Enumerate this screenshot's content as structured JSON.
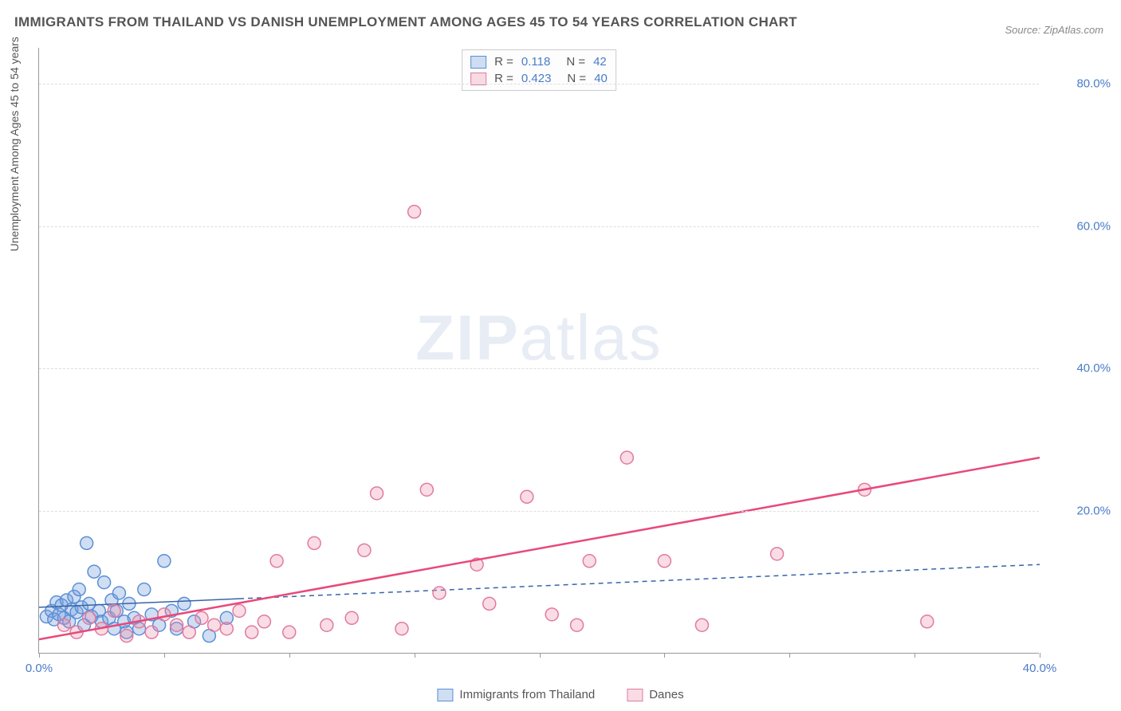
{
  "title": "IMMIGRANTS FROM THAILAND VS DANISH UNEMPLOYMENT AMONG AGES 45 TO 54 YEARS CORRELATION CHART",
  "source": "Source: ZipAtlas.com",
  "y_axis_label": "Unemployment Among Ages 45 to 54 years",
  "watermark": {
    "zip": "ZIP",
    "atlas": "atlas"
  },
  "chart": {
    "type": "scatter",
    "xlim": [
      0,
      40
    ],
    "ylim": [
      0,
      85
    ],
    "x_ticks": [
      0,
      5,
      10,
      15,
      20,
      25,
      30,
      35,
      40
    ],
    "x_tick_labels": [
      "0.0%",
      "",
      "",
      "",
      "",
      "",
      "",
      "",
      "40.0%"
    ],
    "y_ticks": [
      20,
      40,
      60,
      80
    ],
    "y_tick_labels": [
      "20.0%",
      "40.0%",
      "60.0%",
      "80.0%"
    ],
    "grid_color": "#dddddd",
    "background_color": "#ffffff",
    "axis_color": "#999999",
    "tick_label_color": "#4a7bc8",
    "marker_radius": 8,
    "marker_stroke_width": 1.5,
    "series": [
      {
        "name": "Immigrants from Thailand",
        "fill": "rgba(120,160,220,0.35)",
        "stroke": "#5b8fd6",
        "trend": {
          "kind": "solid_then_dashed",
          "x_solid_end": 8,
          "y1": 6.5,
          "y2": 12.5,
          "color": "#3864a8",
          "width": 1.5,
          "dash": "6,5"
        },
        "points": [
          [
            0.3,
            5.2
          ],
          [
            0.5,
            6.0
          ],
          [
            0.6,
            4.8
          ],
          [
            0.7,
            7.2
          ],
          [
            0.8,
            5.5
          ],
          [
            0.9,
            6.8
          ],
          [
            1.0,
            5.0
          ],
          [
            1.1,
            7.5
          ],
          [
            1.2,
            4.5
          ],
          [
            1.3,
            6.2
          ],
          [
            1.4,
            8.0
          ],
          [
            1.5,
            5.8
          ],
          [
            1.6,
            9.0
          ],
          [
            1.7,
            6.5
          ],
          [
            1.8,
            4.0
          ],
          [
            1.9,
            15.5
          ],
          [
            2.0,
            7.0
          ],
          [
            2.1,
            5.2
          ],
          [
            2.2,
            11.5
          ],
          [
            2.4,
            6.0
          ],
          [
            2.5,
            4.5
          ],
          [
            2.6,
            10.0
          ],
          [
            2.8,
            5.0
          ],
          [
            2.9,
            7.5
          ],
          [
            3.0,
            3.5
          ],
          [
            3.1,
            6.0
          ],
          [
            3.2,
            8.5
          ],
          [
            3.4,
            4.5
          ],
          [
            3.5,
            3.0
          ],
          [
            3.6,
            7.0
          ],
          [
            3.8,
            5.0
          ],
          [
            4.0,
            3.5
          ],
          [
            4.2,
            9.0
          ],
          [
            4.5,
            5.5
          ],
          [
            4.8,
            4.0
          ],
          [
            5.0,
            13.0
          ],
          [
            5.3,
            6.0
          ],
          [
            5.5,
            3.5
          ],
          [
            5.8,
            7.0
          ],
          [
            6.2,
            4.5
          ],
          [
            6.8,
            2.5
          ],
          [
            7.5,
            5.0
          ]
        ]
      },
      {
        "name": "Danes",
        "fill": "rgba(240,140,170,0.30)",
        "stroke": "#e07ba0",
        "trend": {
          "kind": "solid",
          "y1": 2.0,
          "y2": 27.5,
          "color": "#e8497a",
          "width": 2.5
        },
        "points": [
          [
            1.0,
            4.0
          ],
          [
            1.5,
            3.0
          ],
          [
            2.0,
            5.0
          ],
          [
            2.5,
            3.5
          ],
          [
            3.0,
            6.0
          ],
          [
            3.5,
            2.5
          ],
          [
            4.0,
            4.5
          ],
          [
            4.5,
            3.0
          ],
          [
            5.0,
            5.5
          ],
          [
            5.5,
            4.0
          ],
          [
            6.0,
            3.0
          ],
          [
            6.5,
            5.0
          ],
          [
            7.0,
            4.0
          ],
          [
            7.5,
            3.5
          ],
          [
            8.0,
            6.0
          ],
          [
            8.5,
            3.0
          ],
          [
            9.0,
            4.5
          ],
          [
            9.5,
            13.0
          ],
          [
            10.0,
            3.0
          ],
          [
            11.0,
            15.5
          ],
          [
            11.5,
            4.0
          ],
          [
            12.5,
            5.0
          ],
          [
            13.0,
            14.5
          ],
          [
            13.5,
            22.5
          ],
          [
            14.5,
            3.5
          ],
          [
            15.0,
            62.0
          ],
          [
            15.5,
            23.0
          ],
          [
            16.0,
            8.5
          ],
          [
            17.5,
            12.5
          ],
          [
            18.0,
            7.0
          ],
          [
            19.5,
            22.0
          ],
          [
            20.5,
            5.5
          ],
          [
            21.5,
            4.0
          ],
          [
            22.0,
            13.0
          ],
          [
            23.5,
            27.5
          ],
          [
            25.0,
            13.0
          ],
          [
            26.5,
            4.0
          ],
          [
            29.5,
            14.0
          ],
          [
            33.0,
            23.0
          ],
          [
            35.5,
            4.5
          ]
        ]
      }
    ]
  },
  "legend_top": [
    {
      "swatch_fill": "rgba(120,160,220,0.35)",
      "swatch_stroke": "#5b8fd6",
      "r_label": "R =",
      "r_value": "0.118",
      "n_label": "N =",
      "n_value": "42"
    },
    {
      "swatch_fill": "rgba(240,140,170,0.30)",
      "swatch_stroke": "#e07ba0",
      "r_label": "R =",
      "r_value": "0.423",
      "n_label": "N =",
      "n_value": "40"
    }
  ],
  "legend_bottom": [
    {
      "swatch_fill": "rgba(120,160,220,0.35)",
      "swatch_stroke": "#5b8fd6",
      "label": "Immigrants from Thailand"
    },
    {
      "swatch_fill": "rgba(240,140,170,0.30)",
      "swatch_stroke": "#e07ba0",
      "label": "Danes"
    }
  ]
}
